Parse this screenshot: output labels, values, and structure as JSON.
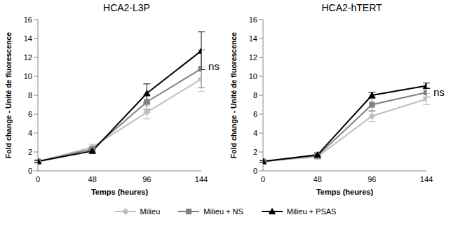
{
  "chart_data": [
    {
      "type": "line",
      "title": "HCA2-L3P",
      "x_label": "Temps (heures)",
      "y_label": "Fold change - Unité de fluorescence",
      "x": [
        0,
        48,
        96,
        144
      ],
      "xlim": [
        0,
        144
      ],
      "xticks": [
        0,
        48,
        96,
        144
      ],
      "ylim": [
        0,
        16
      ],
      "yticks": [
        0,
        2,
        4,
        6,
        8,
        10,
        12,
        14,
        16
      ],
      "grid": false,
      "legend": "bottom",
      "annotation": "ns",
      "series": [
        {
          "name": "Milieu",
          "color": "#BFBFBF",
          "marker": "diamond",
          "values": [
            1,
            2.5,
            6.2,
            9.7
          ],
          "errors": [
            0.2,
            0.3,
            0.7,
            1.3
          ]
        },
        {
          "name": "Milieu + NS",
          "color": "#808080",
          "marker": "square",
          "values": [
            1,
            2.3,
            7.3,
            10.8
          ],
          "errors": [
            0.1,
            0.2,
            0.8,
            2.0
          ]
        },
        {
          "name": "Milieu + PSAS",
          "color": "#000000",
          "marker": "triangle",
          "values": [
            1,
            2.1,
            8.2,
            12.7
          ],
          "errors": [
            0.1,
            0.2,
            1.0,
            2.0
          ]
        }
      ]
    },
    {
      "type": "line",
      "title": "HCA2-hTERT",
      "x_label": "Temps (heures)",
      "y_label": "Fold change - Unité de fluorescence",
      "x": [
        0,
        48,
        96,
        144
      ],
      "xlim": [
        0,
        144
      ],
      "xticks": [
        0,
        48,
        96,
        144
      ],
      "ylim": [
        0,
        16
      ],
      "yticks": [
        0,
        2,
        4,
        6,
        8,
        10,
        12,
        14,
        16
      ],
      "grid": false,
      "legend": "bottom",
      "annotation": "ns",
      "series": [
        {
          "name": "Milieu",
          "color": "#BFBFBF",
          "marker": "diamond",
          "values": [
            1,
            1.5,
            5.8,
            7.6
          ],
          "errors": [
            0.1,
            0.3,
            0.6,
            0.6
          ]
        },
        {
          "name": "Milieu + NS",
          "color": "#808080",
          "marker": "square",
          "values": [
            1,
            1.6,
            7.0,
            8.3
          ],
          "errors": [
            0.1,
            0.3,
            0.7,
            0.5
          ]
        },
        {
          "name": "Milieu + PSAS",
          "color": "#000000",
          "marker": "triangle",
          "values": [
            1,
            1.7,
            8.0,
            9.0
          ],
          "errors": [
            0.1,
            0.2,
            0.3,
            0.3
          ]
        }
      ]
    }
  ]
}
